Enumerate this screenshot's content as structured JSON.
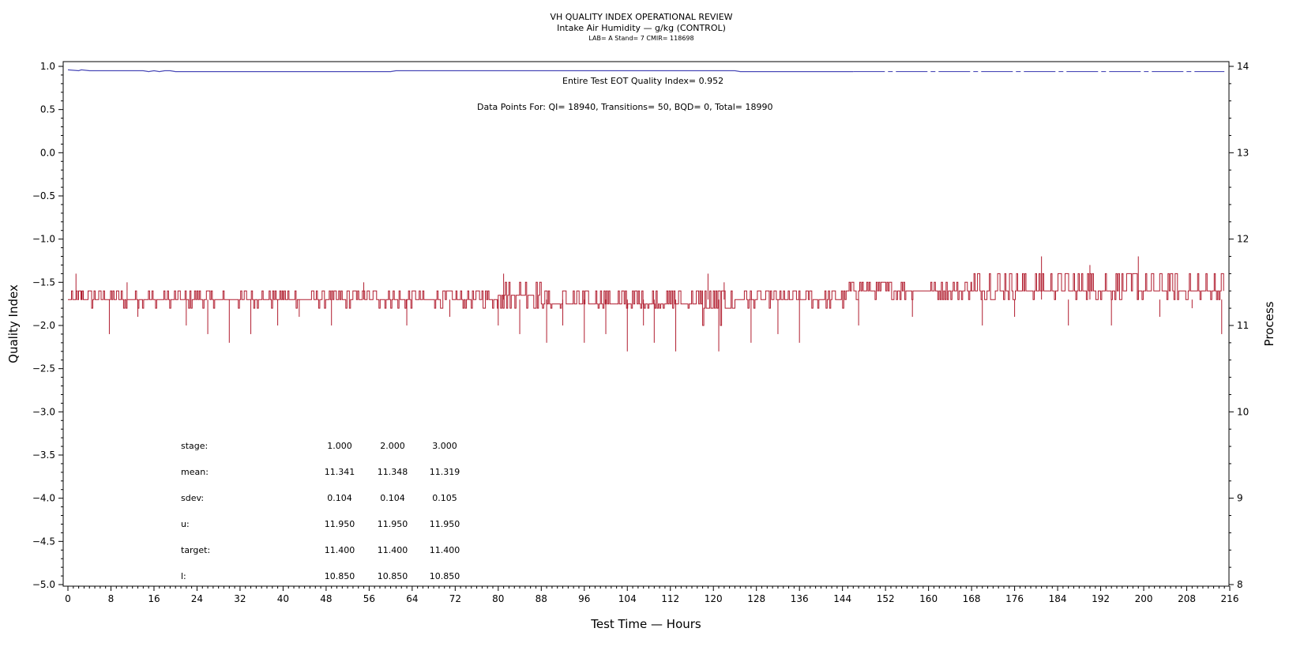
{
  "chart_data": {
    "type": "line",
    "title": "VH QUALITY INDEX OPERATIONAL REVIEW",
    "subtitle": "Intake Air Humidity — g/kg (CONTROL)",
    "subtitle2": "LAB= A Stand= 7 CMIR= 118698",
    "xlabel": "Test Time — Hours",
    "ylabel": "Quality Index",
    "y2label": "Process",
    "xlim": [
      0,
      216
    ],
    "ylim": [
      -5.0,
      1.0
    ],
    "y2lim": [
      8,
      14
    ],
    "grid": false,
    "x_ticks": [
      "0",
      "8",
      "16",
      "24",
      "32",
      "40",
      "48",
      "56",
      "64",
      "72",
      "80",
      "88",
      "96",
      "104",
      "112",
      "120",
      "128",
      "136",
      "144",
      "152",
      "160",
      "168",
      "176",
      "184",
      "192",
      "200",
      "208",
      "216"
    ],
    "y_ticks": [
      "1.0",
      "0.5",
      "0.0",
      "−0.5",
      "−1.0",
      "−1.5",
      "−2.0",
      "−2.5",
      "−3.0",
      "−3.5",
      "−4.0",
      "−4.5",
      "−5.0"
    ],
    "y2_ticks": [
      "14",
      "13",
      "12",
      "11",
      "10",
      "9",
      "8"
    ],
    "annotations": {
      "eot": "Entire Test EOT Quality Index=   0.952",
      "points": "Data Points For: QI= 18940, Transitions=    50, BQD=     0, Total= 18990"
    },
    "series": [
      {
        "axis": "y",
        "color": "#4a4ab8",
        "x": [
          0,
          2,
          2.5,
          4,
          14,
          15,
          16,
          17,
          18,
          19,
          20,
          60,
          61,
          124,
          125,
          146
        ],
        "y": [
          0.96,
          0.95,
          0.96,
          0.95,
          0.95,
          0.94,
          0.95,
          0.94,
          0.95,
          0.95,
          0.94,
          0.94,
          0.95,
          0.95,
          0.94,
          0.94
        ],
        "dashed_from_x": 146,
        "dashed_to_x": 215
      },
      {
        "axis": "y2",
        "color": "#b01c2e",
        "segments": [
          {
            "x0": 0,
            "x1": 40,
            "base": 11.3,
            "hi": 11.4,
            "lo": 11.2
          },
          {
            "x0": 40,
            "x1": 80,
            "base": 11.3,
            "hi": 11.4,
            "lo": 11.2
          },
          {
            "x0": 80,
            "x1": 88,
            "base": 11.35,
            "hi": 11.5,
            "lo": 11.2
          },
          {
            "x0": 88,
            "x1": 118,
            "base": 11.25,
            "hi": 11.4,
            "lo": 11.2
          },
          {
            "x0": 118,
            "x1": 124,
            "base": 11.2,
            "hi": 11.4,
            "lo": 11.0
          },
          {
            "x0": 124,
            "x1": 145,
            "base": 11.3,
            "hi": 11.4,
            "lo": 11.2
          },
          {
            "x0": 145,
            "x1": 168,
            "base": 11.4,
            "hi": 11.5,
            "lo": 11.3
          },
          {
            "x0": 168,
            "x1": 215,
            "base": 11.4,
            "hi": 11.6,
            "lo": 11.3
          }
        ],
        "spikes": [
          {
            "x": 1.5,
            "y": 11.6
          },
          {
            "x": 2.5,
            "y": 11.4
          },
          {
            "x": 7.7,
            "y": 10.9
          },
          {
            "x": 11,
            "y": 11.5
          },
          {
            "x": 13,
            "y": 11.1
          },
          {
            "x": 22,
            "y": 11.0
          },
          {
            "x": 26,
            "y": 10.9
          },
          {
            "x": 30,
            "y": 10.8
          },
          {
            "x": 34,
            "y": 10.9
          },
          {
            "x": 39,
            "y": 11.0
          },
          {
            "x": 43,
            "y": 11.1
          },
          {
            "x": 49,
            "y": 11.0
          },
          {
            "x": 55,
            "y": 11.5
          },
          {
            "x": 63,
            "y": 11.0
          },
          {
            "x": 71,
            "y": 11.1
          },
          {
            "x": 80,
            "y": 11.0
          },
          {
            "x": 81,
            "y": 11.6
          },
          {
            "x": 84,
            "y": 10.9
          },
          {
            "x": 89,
            "y": 10.8
          },
          {
            "x": 92,
            "y": 11.0
          },
          {
            "x": 96,
            "y": 10.8
          },
          {
            "x": 100,
            "y": 10.9
          },
          {
            "x": 104,
            "y": 10.7
          },
          {
            "x": 107,
            "y": 11.0
          },
          {
            "x": 109,
            "y": 10.8
          },
          {
            "x": 113,
            "y": 10.7
          },
          {
            "x": 119,
            "y": 11.6
          },
          {
            "x": 121,
            "y": 10.7
          },
          {
            "x": 122,
            "y": 11.5
          },
          {
            "x": 127,
            "y": 10.8
          },
          {
            "x": 132,
            "y": 10.9
          },
          {
            "x": 136,
            "y": 10.8
          },
          {
            "x": 147,
            "y": 11.0
          },
          {
            "x": 157,
            "y": 11.1
          },
          {
            "x": 170,
            "y": 11.0
          },
          {
            "x": 176,
            "y": 11.1
          },
          {
            "x": 181,
            "y": 11.8
          },
          {
            "x": 186,
            "y": 11.0
          },
          {
            "x": 190,
            "y": 11.7
          },
          {
            "x": 194,
            "y": 11.0
          },
          {
            "x": 199,
            "y": 11.8
          },
          {
            "x": 203,
            "y": 11.1
          },
          {
            "x": 209,
            "y": 11.2
          },
          {
            "x": 214.5,
            "y": 10.9
          }
        ]
      }
    ],
    "stats_table": {
      "rows": [
        {
          "label": "stage:",
          "values": [
            "1.000",
            "2.000",
            "3.000"
          ]
        },
        {
          "label": "mean:",
          "values": [
            "11.341",
            "11.348",
            "11.319"
          ]
        },
        {
          "label": "sdev:",
          "values": [
            "0.104",
            "0.104",
            "0.105"
          ]
        },
        {
          "label": "u:",
          "values": [
            "11.950",
            "11.950",
            "11.950"
          ]
        },
        {
          "label": "target:",
          "values": [
            "11.400",
            "11.400",
            "11.400"
          ]
        },
        {
          "label": "l:",
          "values": [
            "10.850",
            "10.850",
            "10.850"
          ]
        }
      ]
    }
  }
}
